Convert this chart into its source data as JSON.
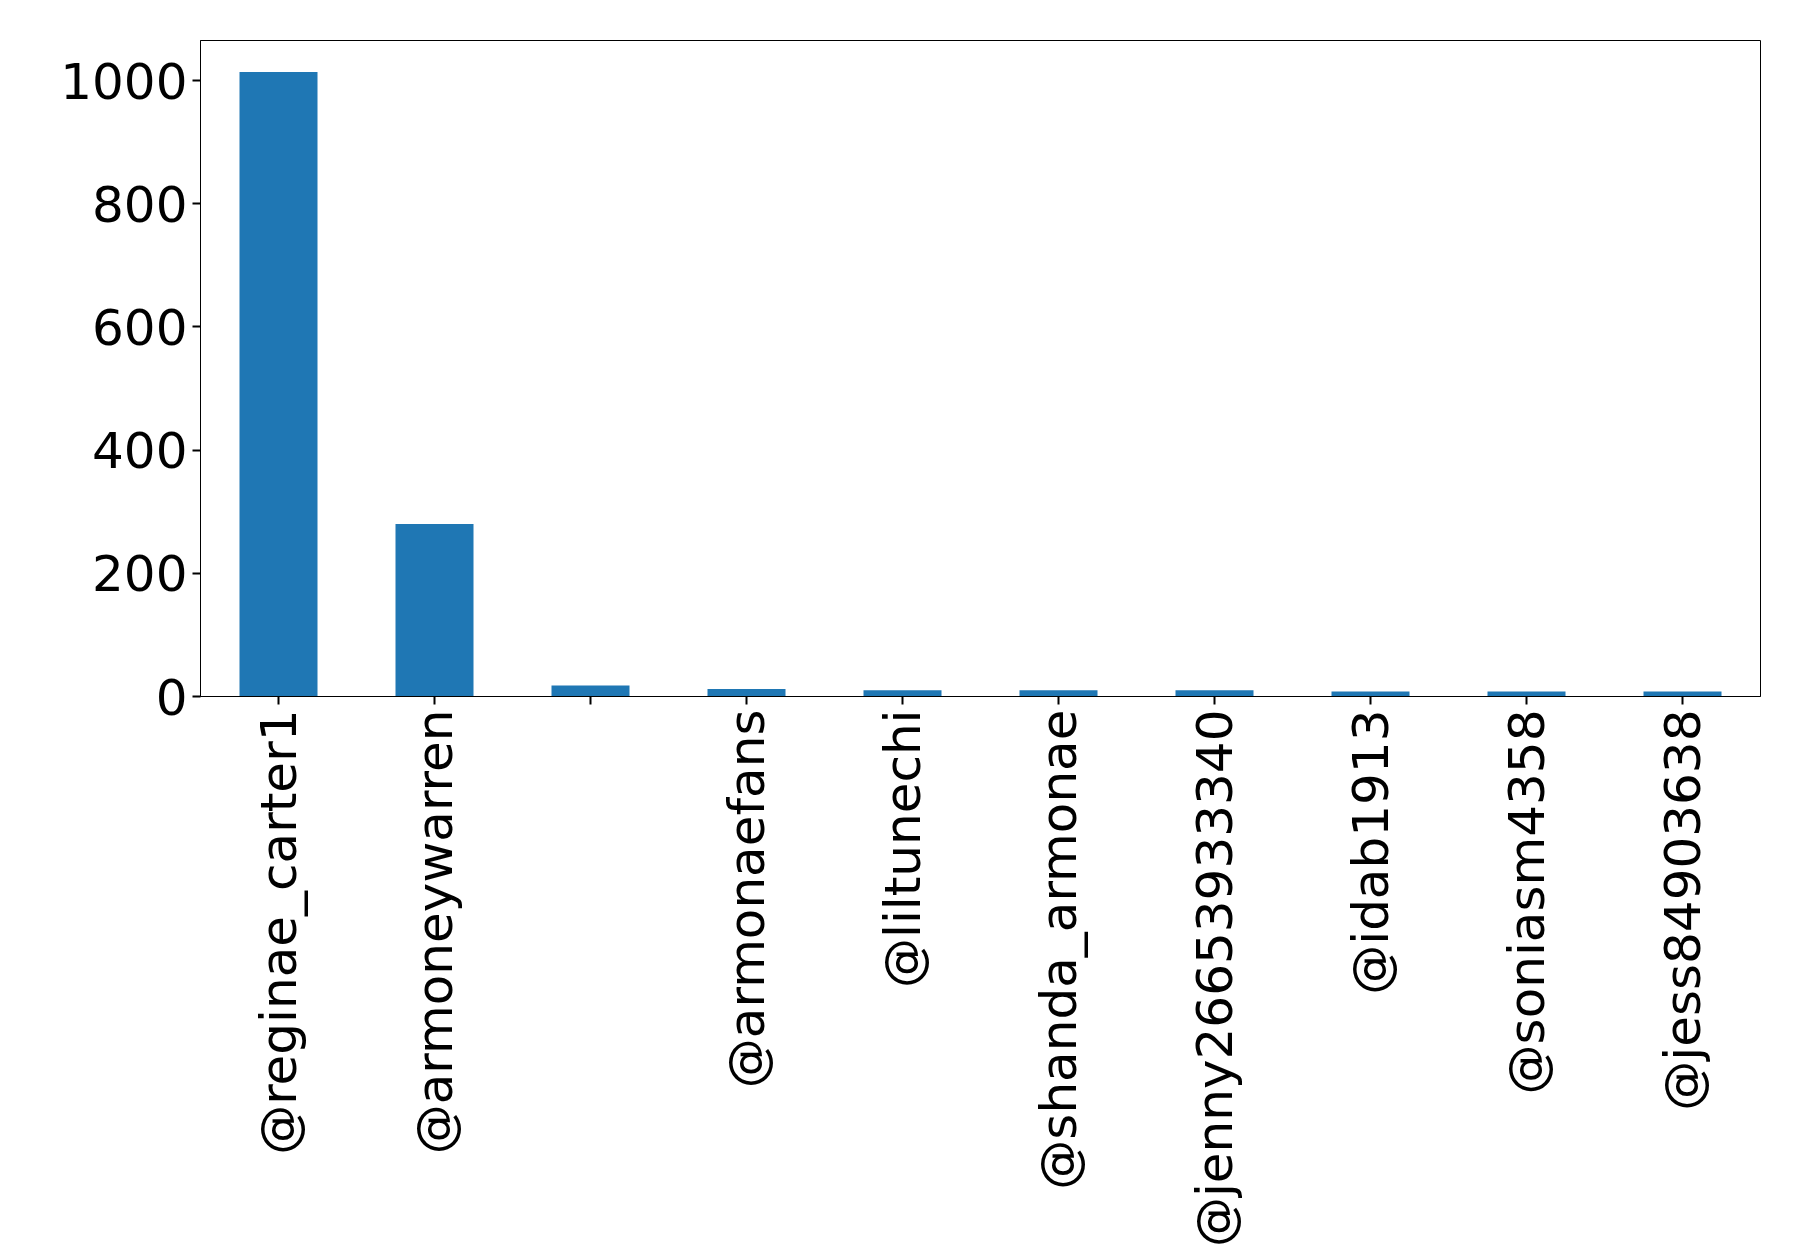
{
  "chart_data": {
    "type": "bar",
    "categories": [
      "@reginae_carter1",
      "@armoneywarren",
      null,
      "@armonaefans",
      "@liltunechi",
      "@shanda_armonae",
      "@jenny26653933340",
      "@idab1913",
      "@soniasm4358",
      "@jess84903638"
    ],
    "values": [
      1014,
      280,
      18,
      12,
      10,
      10,
      10,
      8,
      8,
      8
    ],
    "color": "#1f77b4",
    "ylim": [
      0,
      1065
    ],
    "yticks": [
      0,
      200,
      400,
      600,
      800,
      1000
    ],
    "grid": false
  }
}
